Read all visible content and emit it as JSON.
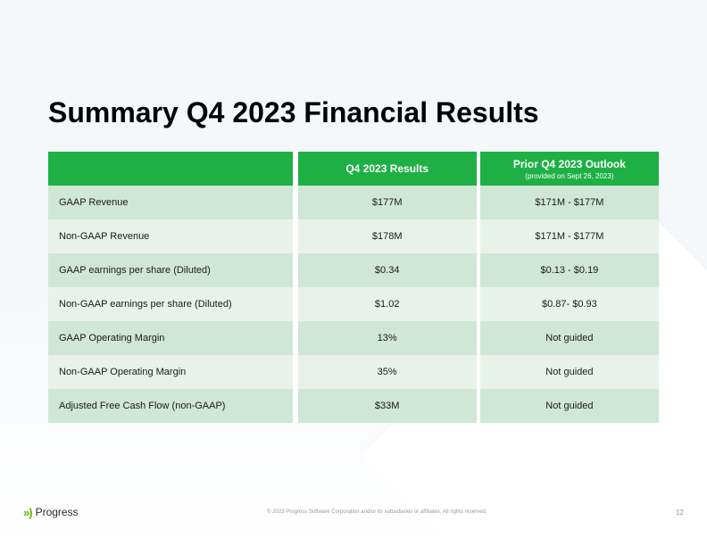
{
  "title": "Summary Q4 2023 Financial Results",
  "table": {
    "headers": {
      "col1": "",
      "col2": "Q4 2023 Results",
      "col3": "Prior Q4 2023 Outlook",
      "col3_sub": "(provided on Sept 26, 2023)"
    },
    "rows": [
      {
        "label": "GAAP Revenue",
        "results": "$177M",
        "outlook": "$171M - $177M"
      },
      {
        "label": "Non-GAAP Revenue",
        "results": "$178M",
        "outlook": "$171M - $177M"
      },
      {
        "label": "GAAP earnings per share (Diluted)",
        "results": "$0.34",
        "outlook": "$0.13 - $0.19"
      },
      {
        "label": "Non-GAAP earnings per share (Diluted)",
        "results": "$1.02",
        "outlook": "$0.87- $0.93"
      },
      {
        "label": "GAAP Operating Margin",
        "results": "13%",
        "outlook": "Not guided"
      },
      {
        "label": "Non-GAAP Operating Margin",
        "results": "35%",
        "outlook": "Not guided"
      },
      {
        "label": "Adjusted Free Cash Flow (non-GAAP)",
        "results": "$33M",
        "outlook": "Not guided"
      }
    ],
    "colors": {
      "header_bg": "#1eb045",
      "header_text": "#ffffff",
      "row_dark": "#cfe7d6",
      "row_light": "#e8f2ea",
      "text": "#1a1a1a"
    }
  },
  "footer": {
    "logo_text": "Progress",
    "copyright": "© 2023 Progress Software Corporation and/or its subsidiaries or affiliates. All rights reserved.",
    "page_number": "12"
  }
}
